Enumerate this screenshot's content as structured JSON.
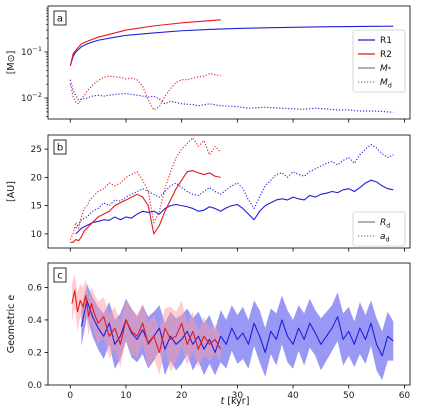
{
  "figure": {
    "xlabel": "t [kyr]",
    "xlabel_main": "t",
    "xlabel_unit": " [kyr]",
    "xlim": [
      -4,
      61
    ],
    "xticks": [
      0,
      10,
      20,
      30,
      40,
      50,
      60
    ]
  },
  "chart_data": [
    {
      "type": "line",
      "panel_label": "a",
      "ylabel": "[M⊙]",
      "yscale": "log",
      "ylim": [
        0.0035,
        1.0
      ],
      "yticks": [
        {
          "value": 0.01,
          "base": "10",
          "exp": "−2"
        },
        {
          "value": 0.1,
          "base": "10",
          "exp": "−1"
        }
      ],
      "legend": {
        "placement": "center-right",
        "entries": [
          {
            "label": "R1",
            "style": "solid",
            "color": "#1f1fdc"
          },
          {
            "label": "R2",
            "style": "solid",
            "color": "#e31a1c"
          },
          {
            "label": "M",
            "sub": "*",
            "style": "solid",
            "color": "#7f7f7f"
          },
          {
            "label": "M",
            "sub": "d",
            "style": "dotted",
            "color": "#7f7f7f"
          }
        ]
      },
      "series": [
        {
          "name": "R1",
          "quantity": "M*",
          "style": "solid",
          "color": "#1f1fdc",
          "x": [
            0,
            0.5,
            1,
            2,
            3,
            5,
            8,
            10,
            15,
            20,
            25,
            30,
            35,
            40,
            45,
            50,
            55,
            58
          ],
          "y": [
            0.05,
            0.08,
            0.1,
            0.13,
            0.15,
            0.18,
            0.21,
            0.23,
            0.26,
            0.29,
            0.31,
            0.325,
            0.335,
            0.345,
            0.352,
            0.358,
            0.362,
            0.365
          ]
        },
        {
          "name": "R2",
          "quantity": "M*",
          "style": "solid",
          "color": "#e31a1c",
          "x": [
            0,
            0.5,
            1,
            2,
            3,
            5,
            8,
            10,
            15,
            20,
            25,
            27
          ],
          "y": [
            0.05,
            0.09,
            0.11,
            0.15,
            0.17,
            0.21,
            0.26,
            0.3,
            0.37,
            0.43,
            0.48,
            0.5
          ]
        },
        {
          "name": "R1",
          "quantity": "Md",
          "style": "dotted",
          "color": "#1f1fdc",
          "x": [
            0,
            0.5,
            1,
            1.5,
            2,
            3,
            4,
            5,
            6,
            8,
            10,
            12,
            14,
            15,
            16,
            17,
            18,
            20,
            22,
            23,
            25,
            27,
            30,
            32,
            35,
            38,
            40,
            42,
            44,
            46,
            48,
            50,
            52,
            55,
            58
          ],
          "y": [
            0.025,
            0.015,
            0.011,
            0.009,
            0.0095,
            0.01,
            0.011,
            0.0115,
            0.011,
            0.012,
            0.0125,
            0.0115,
            0.0105,
            0.011,
            0.0095,
            0.0075,
            0.0085,
            0.0075,
            0.0072,
            0.0068,
            0.0075,
            0.0068,
            0.0065,
            0.006,
            0.0063,
            0.006,
            0.0058,
            0.0057,
            0.006,
            0.0058,
            0.0055,
            0.0055,
            0.0052,
            0.0052,
            0.0049
          ]
        },
        {
          "name": "R2",
          "quantity": "Md",
          "style": "dotted",
          "color": "#e31a1c",
          "x": [
            0,
            0.5,
            1,
            1.5,
            2,
            3,
            4,
            5,
            6,
            7,
            8,
            9,
            10,
            11,
            12,
            13,
            14,
            15,
            16,
            17,
            18,
            19,
            20,
            21,
            22,
            23,
            24,
            25,
            26,
            27
          ],
          "y": [
            0.02,
            0.011,
            0.008,
            0.0075,
            0.0095,
            0.014,
            0.019,
            0.024,
            0.028,
            0.03,
            0.029,
            0.028,
            0.026,
            0.027,
            0.025,
            0.018,
            0.009,
            0.0055,
            0.0065,
            0.011,
            0.016,
            0.022,
            0.025,
            0.025,
            0.027,
            0.029,
            0.03,
            0.034,
            0.032,
            0.031
          ]
        }
      ]
    },
    {
      "type": "line",
      "panel_label": "b",
      "ylabel": "[AU]",
      "ylim": [
        7.5,
        27.5
      ],
      "yticks": [
        10,
        15,
        20,
        25
      ],
      "legend": {
        "placement": "bottom-right",
        "entries": [
          {
            "label": "R",
            "sub": "d",
            "style": "solid",
            "color": "#7f7f7f"
          },
          {
            "label": "a",
            "sub": "d",
            "style": "dotted",
            "color": "#7f7f7f"
          }
        ]
      },
      "series": [
        {
          "name": "R1",
          "quantity": "Rd",
          "style": "solid",
          "color": "#1f1fdc",
          "x": [
            1,
            2,
            3,
            4,
            5,
            6,
            7,
            8,
            9,
            10,
            11,
            12,
            13,
            14,
            15,
            16,
            17,
            18,
            19,
            20,
            21,
            22,
            23,
            24,
            25,
            26,
            27,
            28,
            29,
            30,
            31,
            32,
            33,
            34,
            35,
            36,
            37,
            38,
            39,
            40,
            41,
            42,
            43,
            44,
            45,
            46,
            47,
            48,
            49,
            50,
            51,
            52,
            53,
            54,
            55,
            56,
            57,
            58
          ],
          "y": [
            10,
            11,
            11.5,
            12,
            12.2,
            12.5,
            12.4,
            13,
            12.5,
            13,
            12.8,
            13.5,
            14,
            13.8,
            14,
            13.5,
            14.5,
            15,
            15.2,
            15,
            14.8,
            14.5,
            14,
            14.2,
            14.8,
            14.5,
            14,
            14.6,
            15,
            15.2,
            14.5,
            13.5,
            12.5,
            14,
            15,
            15.5,
            16,
            16.2,
            16,
            16.5,
            16.2,
            16,
            16.8,
            16.5,
            17,
            17.2,
            17.5,
            17.3,
            17.8,
            18,
            17.5,
            18.2,
            19,
            19.5,
            19.2,
            18.5,
            18,
            17.8
          ]
        },
        {
          "name": "R2",
          "quantity": "Rd",
          "style": "solid",
          "color": "#e31a1c",
          "x": [
            0,
            0.5,
            1,
            1.5,
            2,
            2.5,
            3,
            3.5,
            4,
            5,
            6,
            7,
            8,
            9,
            10,
            11,
            12,
            13,
            14,
            15,
            16,
            17,
            18,
            19,
            20,
            21,
            22,
            23,
            24,
            25,
            26,
            27
          ],
          "y": [
            8.5,
            8.5,
            9,
            8.8,
            9.5,
            10.5,
            11,
            11.5,
            12,
            13,
            13.5,
            14,
            15,
            15.5,
            16,
            16.5,
            17,
            16.5,
            15,
            10,
            11.5,
            14,
            16,
            18,
            19.5,
            21,
            21.2,
            20.8,
            20.5,
            20.8,
            20.2,
            20
          ]
        },
        {
          "name": "R1",
          "quantity": "ad",
          "style": "dotted",
          "color": "#1f1fdc",
          "x": [
            1,
            2,
            3,
            4,
            5,
            6,
            7,
            8,
            9,
            10,
            11,
            12,
            13,
            14,
            15,
            16,
            17,
            18,
            19,
            20,
            21,
            22,
            23,
            24,
            25,
            26,
            27,
            28,
            29,
            30,
            31,
            32,
            33,
            34,
            35,
            36,
            37,
            38,
            39,
            40,
            41,
            42,
            43,
            44,
            45,
            46,
            47,
            48,
            49,
            50,
            51,
            52,
            53,
            54,
            55,
            56,
            57,
            58
          ],
          "y": [
            11,
            12.5,
            13,
            14,
            14.5,
            15.5,
            15,
            16,
            15.8,
            16.5,
            17,
            17.5,
            18,
            17.5,
            17,
            16.5,
            17.5,
            18.5,
            19,
            18.2,
            17.5,
            17,
            16.8,
            17.5,
            18.2,
            17.5,
            17,
            17.8,
            18.5,
            19,
            18,
            16,
            14.5,
            16.5,
            18.5,
            19.5,
            20.5,
            20.8,
            20,
            21,
            20.5,
            20.2,
            21,
            21.5,
            22,
            22.5,
            22.8,
            22.2,
            23,
            23.5,
            22.5,
            24,
            25,
            25.8,
            25.2,
            24.2,
            23.5,
            24
          ]
        },
        {
          "name": "R2",
          "quantity": "ad",
          "style": "dotted",
          "color": "#e31a1c",
          "x": [
            0,
            0.5,
            1,
            1.5,
            2,
            2.5,
            3,
            3.5,
            4,
            5,
            6,
            7,
            8,
            9,
            10,
            11,
            12,
            13,
            14,
            15,
            16,
            17,
            18,
            19,
            20,
            21,
            22,
            23,
            24,
            25,
            26,
            27
          ],
          "y": [
            9,
            10,
            12,
            11,
            13,
            14.5,
            15,
            16,
            16.5,
            17.5,
            18,
            19,
            18.5,
            19,
            20,
            20.5,
            21,
            19.5,
            17.5,
            12,
            14,
            18,
            21,
            23.5,
            25,
            26,
            27,
            25.5,
            26.5,
            24,
            25.5,
            24.5
          ]
        }
      ]
    },
    {
      "type": "line",
      "panel_label": "c",
      "ylabel": "Geometric e",
      "ylim": [
        0.0,
        0.75
      ],
      "yticks": [
        0.0,
        0.2,
        0.4,
        0.6
      ],
      "ytick_labels": [
        "0.0",
        "0.2",
        "0.4",
        "0.6"
      ],
      "bands": "shaded spread around each series",
      "series": [
        {
          "name": "R1",
          "style": "solid",
          "color": "#1f1fdc",
          "band_color": "#5555ee",
          "band_opacity": 0.6,
          "x": [
            2,
            3,
            4,
            5,
            6,
            7,
            8,
            9,
            10,
            11,
            12,
            13,
            14,
            15,
            16,
            17,
            18,
            19,
            20,
            21,
            22,
            23,
            24,
            25,
            26,
            27,
            28,
            29,
            30,
            31,
            32,
            33,
            34,
            35,
            36,
            37,
            38,
            39,
            40,
            41,
            42,
            43,
            44,
            45,
            46,
            47,
            48,
            49,
            50,
            51,
            52,
            53,
            54,
            55,
            56,
            57,
            58
          ],
          "y": [
            0.36,
            0.52,
            0.42,
            0.35,
            0.3,
            0.38,
            0.25,
            0.3,
            0.4,
            0.32,
            0.28,
            0.34,
            0.26,
            0.3,
            0.35,
            0.22,
            0.3,
            0.25,
            0.28,
            0.33,
            0.25,
            0.3,
            0.22,
            0.28,
            0.2,
            0.3,
            0.25,
            0.35,
            0.28,
            0.32,
            0.25,
            0.38,
            0.3,
            0.2,
            0.33,
            0.28,
            0.4,
            0.3,
            0.25,
            0.35,
            0.28,
            0.38,
            0.32,
            0.25,
            0.3,
            0.35,
            0.42,
            0.28,
            0.33,
            0.25,
            0.35,
            0.28,
            0.38,
            0.25,
            0.18,
            0.3,
            0.27
          ],
          "band": [
            0.12,
            0.1,
            0.12,
            0.13,
            0.14,
            0.13,
            0.15,
            0.14,
            0.13,
            0.15,
            0.14,
            0.15,
            0.16,
            0.15,
            0.14,
            0.16,
            0.15,
            0.16,
            0.15,
            0.14,
            0.16,
            0.15,
            0.16,
            0.15,
            0.14,
            0.16,
            0.15,
            0.14,
            0.15,
            0.16,
            0.15,
            0.14,
            0.16,
            0.15,
            0.14,
            0.16,
            0.15,
            0.16,
            0.15,
            0.14,
            0.16,
            0.15,
            0.14,
            0.16,
            0.15,
            0.14,
            0.15,
            0.16,
            0.15,
            0.14,
            0.16,
            0.15,
            0.14,
            0.16,
            0.15,
            0.15,
            0.12
          ]
        },
        {
          "name": "R2",
          "style": "solid",
          "color": "#e31a1c",
          "band_color": "#ff9aa2",
          "band_opacity": 0.5,
          "x": [
            0.3,
            0.8,
            1.3,
            1.8,
            2.3,
            2.8,
            3.3,
            3.8,
            4.3,
            5,
            6,
            7,
            8,
            9,
            10,
            11,
            12,
            13,
            14,
            15,
            16,
            17,
            18,
            19,
            20,
            21,
            22,
            23,
            24,
            25,
            26,
            27
          ],
          "y": [
            0.5,
            0.58,
            0.45,
            0.52,
            0.48,
            0.55,
            0.42,
            0.5,
            0.44,
            0.38,
            0.42,
            0.3,
            0.35,
            0.25,
            0.4,
            0.33,
            0.3,
            0.38,
            0.25,
            0.3,
            0.2,
            0.35,
            0.28,
            0.3,
            0.38,
            0.25,
            0.33,
            0.22,
            0.3,
            0.25,
            0.28,
            0.22
          ],
          "band": [
            0.12,
            0.1,
            0.12,
            0.1,
            0.12,
            0.1,
            0.12,
            0.1,
            0.12,
            0.13,
            0.12,
            0.14,
            0.13,
            0.14,
            0.12,
            0.14,
            0.13,
            0.12,
            0.14,
            0.13,
            0.14,
            0.12,
            0.2,
            0.15,
            0.14,
            0.13,
            0.12,
            0.11,
            0.12,
            0.1,
            0.09,
            0.08
          ]
        }
      ]
    }
  ]
}
